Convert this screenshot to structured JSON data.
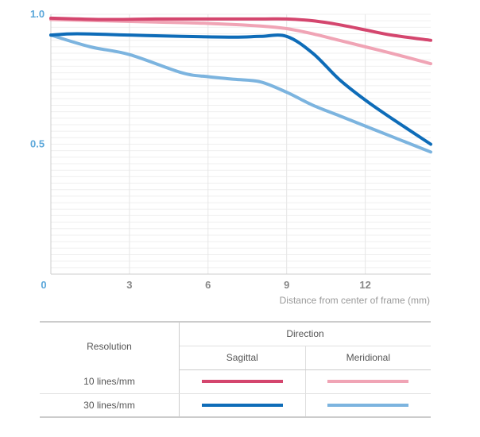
{
  "chart_data": {
    "type": "line",
    "xlabel": "Distance from center of frame (mm)",
    "ylabel": "",
    "xlim": [
      0,
      14.5
    ],
    "ylim": [
      0,
      1.0
    ],
    "x_ticks": [
      "0",
      "3",
      "6",
      "9",
      "12"
    ],
    "x_tick_values": [
      0,
      3,
      6,
      9,
      12
    ],
    "y_ticks": [
      "0.5",
      "1.0"
    ],
    "y_tick_values": [
      0.5,
      1.0
    ],
    "minor_grid": true,
    "series": [
      {
        "resolution": "10 lines/mm",
        "direction": "Sagittal",
        "color": "#D4466E",
        "points": [
          [
            0,
            0.985
          ],
          [
            2,
            0.98
          ],
          [
            4,
            0.982
          ],
          [
            6,
            0.982
          ],
          [
            8,
            0.982
          ],
          [
            9,
            0.982
          ],
          [
            10,
            0.975
          ],
          [
            11,
            0.96
          ],
          [
            12,
            0.94
          ],
          [
            13,
            0.92
          ],
          [
            14.5,
            0.9
          ]
        ]
      },
      {
        "resolution": "10 lines/mm",
        "direction": "Meridional",
        "color": "#F0A4B5",
        "points": [
          [
            0,
            0.98
          ],
          [
            2,
            0.975
          ],
          [
            4,
            0.97
          ],
          [
            6,
            0.965
          ],
          [
            8,
            0.955
          ],
          [
            9,
            0.945
          ],
          [
            10,
            0.925
          ],
          [
            11,
            0.9
          ],
          [
            12,
            0.875
          ],
          [
            13,
            0.85
          ],
          [
            14.5,
            0.81
          ]
        ]
      },
      {
        "resolution": "30 lines/mm",
        "direction": "Sagittal",
        "color": "#0E6CB8",
        "points": [
          [
            0,
            0.92
          ],
          [
            1,
            0.925
          ],
          [
            3,
            0.92
          ],
          [
            5,
            0.915
          ],
          [
            7,
            0.912
          ],
          [
            8,
            0.915
          ],
          [
            9,
            0.915
          ],
          [
            10,
            0.85
          ],
          [
            11,
            0.75
          ],
          [
            12,
            0.67
          ],
          [
            13,
            0.6
          ],
          [
            14.5,
            0.5
          ]
        ]
      },
      {
        "resolution": "30 lines/mm",
        "direction": "Meridional",
        "color": "#7CB4DF",
        "points": [
          [
            0,
            0.92
          ],
          [
            1.5,
            0.875
          ],
          [
            3,
            0.845
          ],
          [
            5,
            0.775
          ],
          [
            6,
            0.76
          ],
          [
            7,
            0.75
          ],
          [
            8,
            0.74
          ],
          [
            9,
            0.7
          ],
          [
            10,
            0.65
          ],
          [
            11,
            0.61
          ],
          [
            12,
            0.57
          ],
          [
            13,
            0.53
          ],
          [
            14.5,
            0.47
          ]
        ]
      }
    ]
  },
  "legend": {
    "resolution_header": "Resolution",
    "direction_header": "Direction",
    "sagittal_label": "Sagittal",
    "meridional_label": "Meridional",
    "rows": [
      {
        "label": "10 lines/mm",
        "sagittal_color": "#D4466E",
        "meridional_color": "#F0A4B5"
      },
      {
        "label": "30 lines/mm",
        "sagittal_color": "#0E6CB8",
        "meridional_color": "#7CB4DF"
      }
    ]
  },
  "colors": {
    "axis_label": "#5BA7DA",
    "tick_label": "#888888",
    "grid": "#E6E6E6",
    "border": "#CCCCCC"
  }
}
